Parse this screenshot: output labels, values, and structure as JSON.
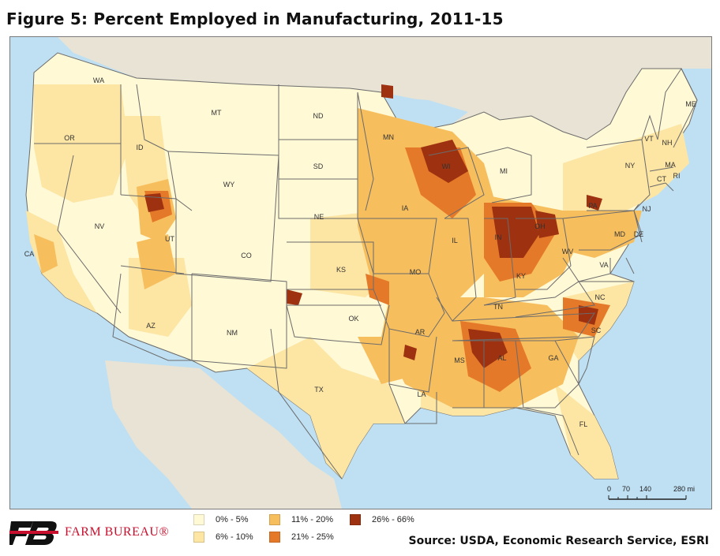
{
  "title": "Figure 5: Percent Employed in Manufacturing, 2011-15",
  "source": "Source: USDA, Economic Research Service, ESRI",
  "logo_text": "FARM BUREAU®",
  "colors": {
    "water": "#bfe0f3",
    "land_outside": "#e8e3d4",
    "state_border": "#6b6b6b",
    "bin_0_5": "#fff9d6",
    "bin_6_10": "#fde5a3",
    "bin_11_20": "#f7be5e",
    "bin_21_25": "#e5792a",
    "bin_26_66": "#9e3210",
    "logo": "#c8102e"
  },
  "legend": [
    {
      "label": "0% - 5%",
      "color_key": "bin_0_5"
    },
    {
      "label": "6% - 10%",
      "color_key": "bin_6_10"
    },
    {
      "label": "11% - 20%",
      "color_key": "bin_11_20"
    },
    {
      "label": "21% - 25%",
      "color_key": "bin_21_25"
    },
    {
      "label": "26% - 66%",
      "color_key": "bin_26_66"
    }
  ],
  "scale": {
    "ticks": [
      "0",
      "70",
      "140",
      "280 mi"
    ]
  },
  "states": [
    "WA",
    "OR",
    "CA",
    "ID",
    "NV",
    "MT",
    "WY",
    "UT",
    "AZ",
    "CO",
    "NM",
    "ND",
    "SD",
    "NE",
    "KS",
    "OK",
    "TX",
    "MN",
    "IA",
    "MO",
    "AR",
    "LA",
    "WI",
    "IL",
    "MI",
    "IN",
    "OH",
    "KY",
    "TN",
    "MS",
    "AL",
    "GA",
    "FL",
    "SC",
    "NC",
    "VA",
    "WV",
    "PA",
    "NY",
    "VT",
    "NH",
    "ME",
    "MA",
    "CT",
    "RI",
    "NJ",
    "DE",
    "MD"
  ]
}
